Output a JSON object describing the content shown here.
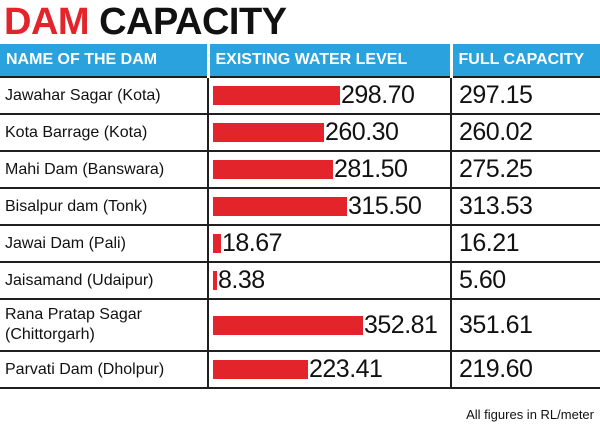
{
  "title": {
    "accent": "DAM",
    "rest": " CAPACITY"
  },
  "columns": [
    "NAME OF THE DAM",
    "EXISTING WATER LEVEL",
    "FULL CAPACITY"
  ],
  "chart_data": {
    "type": "bar",
    "title": "DAM CAPACITY",
    "categories": [
      "Jawahar Sagar (Kota)",
      "Kota Barrage (Kota)",
      "Mahi Dam (Banswara)",
      "Bisalpur dam (Tonk)",
      "Jawai Dam (Pali)",
      "Jaisamand (Udaipur)",
      "Rana Pratap Sagar (Chittorgarh)",
      "Parvati Dam (Dholpur)"
    ],
    "category_lines": [
      [
        "Jawahar Sagar (Kota)"
      ],
      [
        "Kota Barrage (Kota)"
      ],
      [
        "Mahi Dam (Banswara)"
      ],
      [
        "Bisalpur dam (Tonk)"
      ],
      [
        "Jawai Dam (Pali)"
      ],
      [
        "Jaisamand (Udaipur)"
      ],
      [
        "Rana Pratap Sagar",
        "(Chittorgarh)"
      ],
      [
        "Parvati Dam (Dholpur)"
      ]
    ],
    "series": [
      {
        "name": "EXISTING WATER LEVEL",
        "values": [
          298.7,
          260.3,
          281.5,
          315.5,
          18.67,
          8.38,
          352.81,
          223.41
        ],
        "labels": [
          "298.70",
          "260.30",
          "281.50",
          "315.50",
          "18.67",
          "8.38",
          "352.81",
          "223.41"
        ]
      },
      {
        "name": "FULL CAPACITY",
        "values": [
          297.15,
          260.02,
          275.25,
          313.53,
          16.21,
          5.6,
          351.61,
          219.6
        ],
        "labels": [
          "297.15",
          "260.02",
          "275.25",
          "313.53",
          "16.21",
          "5.60",
          "351.61",
          "219.60"
        ]
      }
    ],
    "colors": {
      "bar": "#e3242b",
      "header": "#2aa2dd",
      "title_accent": "#e3242b"
    }
  },
  "footnote": "All figures in RL/meter"
}
